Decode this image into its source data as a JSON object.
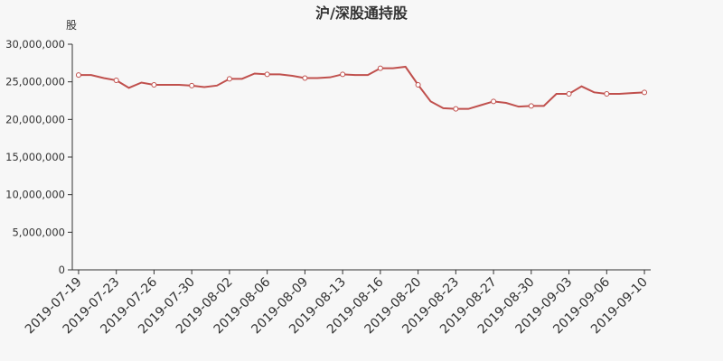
{
  "chart_data": {
    "type": "line",
    "title": "沪/深股通持股",
    "y_label": "股",
    "categories": [
      "2019-07-19",
      null,
      null,
      "2019-07-23",
      null,
      null,
      "2019-07-26",
      null,
      null,
      "2019-07-30",
      null,
      null,
      "2019-08-02",
      null,
      null,
      "2019-08-06",
      null,
      null,
      "2019-08-09",
      null,
      null,
      "2019-08-13",
      null,
      null,
      "2019-08-16",
      null,
      null,
      "2019-08-20",
      null,
      null,
      "2019-08-23",
      null,
      null,
      "2019-08-27",
      null,
      null,
      "2019-08-30",
      null,
      null,
      "2019-09-03",
      null,
      null,
      "2019-09-06",
      null,
      null,
      "2019-09-10"
    ],
    "series": [
      {
        "name": "沪/深股通持股",
        "color": "#c0504d",
        "values": [
          25900000,
          25900000,
          25500000,
          25200000,
          24200000,
          24900000,
          24600000,
          24600000,
          24600000,
          24500000,
          24300000,
          24500000,
          25400000,
          25400000,
          26100000,
          26000000,
          26000000,
          25800000,
          25500000,
          25500000,
          25600000,
          26000000,
          25900000,
          25900000,
          26800000,
          26800000,
          27000000,
          24600000,
          22400000,
          21500000,
          21400000,
          21400000,
          21900000,
          22400000,
          22200000,
          21700000,
          21800000,
          21800000,
          23400000,
          23400000,
          24400000,
          23600000,
          23400000,
          23400000,
          23500000,
          23600000
        ]
      }
    ],
    "ylim": [
      0,
      30000000
    ],
    "yticks": [
      0,
      {
        "value": 5000000,
        "label": "5,000,000"
      },
      {
        "value": 10000000,
        "label": "10,000,000"
      },
      {
        "value": 15000000,
        "label": "15,000,000"
      },
      {
        "value": 20000000,
        "label": "20,000,000"
      },
      {
        "value": 25000000,
        "label": "25,000,000"
      },
      {
        "value": 30000000,
        "label": "30,000,000"
      }
    ],
    "grid": false
  }
}
